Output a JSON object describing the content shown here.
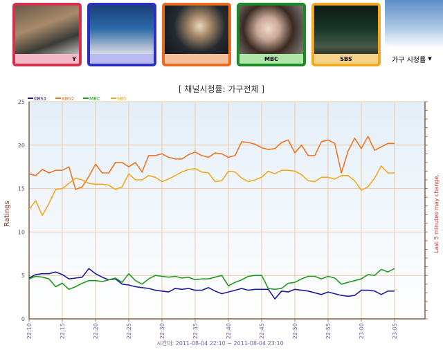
{
  "channels": [
    {
      "name": "",
      "caption": "Y",
      "border": "#d6304e",
      "bar": "#f3b7c6"
    },
    {
      "name": "",
      "caption": "",
      "border": "#2a2fc0",
      "bar": "#b8bcf2"
    },
    {
      "name": "",
      "caption": "",
      "border": "#ea6a1e",
      "bar": "#f6c19a"
    },
    {
      "name": "",
      "caption": "MBC",
      "border": "#1b8a26",
      "bar": "#aee6a6"
    },
    {
      "name": "",
      "caption": "SBS",
      "border": "#f2a823",
      "bar": "#f7d38a"
    }
  ],
  "selector": {
    "value": "가구 시청률"
  },
  "chart_title": "[ 채널시청률: 가구전체 ]",
  "chart_data": {
    "type": "line",
    "title": "[ 채널시청률: 가구전체 ]",
    "ylabel": "Ratings",
    "y2label": "Last 5 minutes may change.",
    "xlabel": "시간대: 2011-08-04 22:10 ~ 2011-08-04 23:10",
    "ylim": [
      0,
      25
    ],
    "yticks": [
      0,
      5,
      10,
      15,
      20,
      25
    ],
    "xticks": [
      "22:10",
      "22:15",
      "22:20",
      "22:25",
      "22:30",
      "22:35",
      "22:40",
      "22:45",
      "22:50",
      "22:55",
      "23:00",
      "23:05"
    ],
    "legend_position": "top-left",
    "grid": true,
    "x_minutes_start": "22:10",
    "series": [
      {
        "name": "KBS1",
        "color": "#1a1a9c",
        "values": [
          4.7,
          5.1,
          5.2,
          5.2,
          5.4,
          5.1,
          4.6,
          4.7,
          4.8,
          5.8,
          5.2,
          4.8,
          4.5,
          4.6,
          4.0,
          3.9,
          3.7,
          3.6,
          3.5,
          3.3,
          3.2,
          3.1,
          3.5,
          3.4,
          3.5,
          3.3,
          3.3,
          3.6,
          3.2,
          2.9,
          3.1,
          3.3,
          3.5,
          3.3,
          3.4,
          3.4,
          3.4,
          2.3,
          3.2,
          3.1,
          3.4,
          3.3,
          3.2,
          3.0,
          2.8,
          3.1,
          2.9,
          2.7,
          2.6,
          2.7,
          3.3,
          3.3,
          3.2,
          2.8,
          3.2,
          3.2
        ]
      },
      {
        "name": "KBS2",
        "color": "#ee7420",
        "values": [
          16.7,
          16.5,
          17.2,
          16.8,
          17.1,
          17.1,
          17.5,
          14.9,
          15.2,
          16.4,
          17.8,
          16.8,
          16.8,
          18.0,
          18.0,
          17.5,
          18.0,
          16.9,
          18.8,
          18.8,
          19.0,
          18.6,
          18.4,
          18.4,
          18.9,
          19.2,
          18.8,
          18.6,
          19.1,
          19.0,
          18.6,
          18.8,
          20.4,
          20.3,
          20.1,
          19.7,
          19.5,
          19.6,
          20.3,
          20.6,
          19.1,
          20.0,
          18.8,
          18.8,
          20.4,
          20.6,
          20.2,
          16.8,
          19.3,
          20.8,
          19.6,
          21.0,
          19.4,
          19.8,
          20.2,
          20.2
        ]
      },
      {
        "name": "MBC",
        "color": "#1e9a1e",
        "values": [
          4.6,
          4.9,
          4.8,
          4.6,
          3.7,
          4.1,
          3.4,
          3.7,
          4.1,
          4.4,
          4.4,
          4.3,
          4.5,
          4.7,
          4.2,
          5.2,
          4.4,
          4.0,
          4.6,
          5.0,
          4.9,
          4.8,
          4.9,
          4.7,
          4.8,
          4.5,
          4.6,
          4.6,
          4.8,
          5.0,
          3.8,
          4.2,
          4.5,
          4.9,
          5.0,
          5.0,
          3.5,
          3.4,
          3.5,
          4.1,
          4.2,
          4.6,
          4.9,
          4.9,
          4.6,
          4.9,
          4.7,
          4.0,
          4.2,
          4.4,
          4.6,
          5.1,
          5.0,
          5.7,
          5.4,
          5.8
        ]
      },
      {
        "name": "SBS",
        "color": "#f2a81d",
        "values": [
          12.6,
          13.6,
          11.9,
          13.3,
          14.9,
          15.0,
          15.6,
          16.2,
          16.0,
          15.6,
          15.5,
          15.5,
          15.4,
          14.9,
          15.2,
          16.7,
          16.0,
          16.0,
          16.5,
          16.3,
          15.8,
          16.1,
          16.5,
          16.9,
          17.2,
          17.3,
          16.9,
          16.8,
          15.8,
          15.9,
          17.0,
          16.9,
          16.2,
          15.8,
          16.0,
          16.3,
          17.0,
          16.7,
          17.1,
          17.1,
          17.0,
          16.6,
          15.9,
          15.8,
          16.3,
          16.3,
          16.1,
          16.5,
          16.5,
          15.9,
          14.8,
          15.2,
          16.2,
          17.6,
          16.8,
          16.8
        ]
      }
    ]
  }
}
